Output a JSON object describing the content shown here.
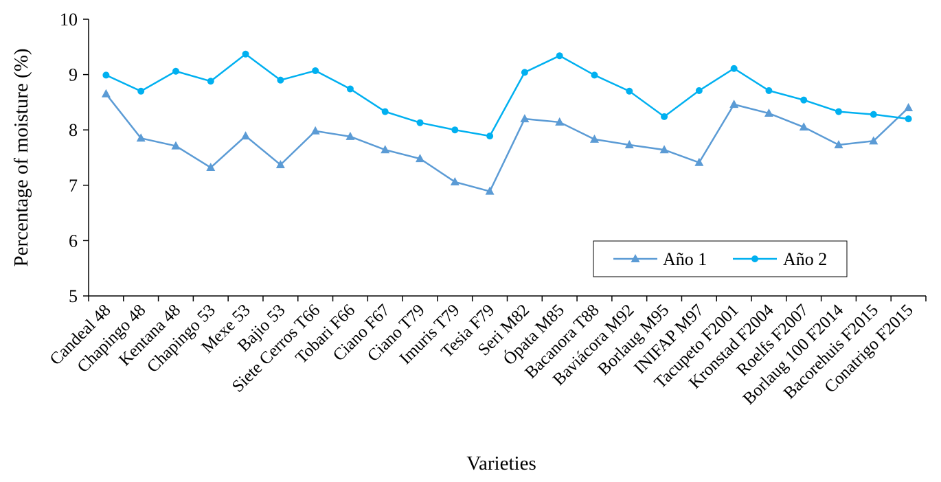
{
  "chart_data": {
    "type": "line",
    "xlabel": "Varieties",
    "ylabel": "Percentage  of moisture (%)",
    "ylim": [
      5,
      10
    ],
    "yticks": [
      5,
      6,
      7,
      8,
      9,
      10
    ],
    "grid": false,
    "legend_position": "bottom-right",
    "categories": [
      "Candeal 48",
      "Chapingo 48",
      "Kentana 48",
      "Chapingo 53",
      "Mexe 53",
      "Bajio 53",
      "Siete Cerros T66",
      "Tobari F66",
      "Ciano F67",
      "Ciano T79",
      "Imuris T79",
      "Tesia F79",
      "Seri M82",
      "Ópata M85",
      "Bacanora T88",
      "Baviácora M92",
      "Borlaug M95",
      "INIFAP M97",
      "Tacupeto F2001",
      "Kronstad F2004",
      "Roelfs F2007",
      "Borlaug 100 F2014",
      "Bacorehuis F2015",
      "Conatrigo F2015"
    ],
    "series": [
      {
        "name": "Año 1",
        "marker": "triangle",
        "color": "#5b9bd5",
        "values": [
          8.65,
          7.85,
          7.71,
          7.32,
          7.89,
          7.37,
          7.98,
          7.88,
          7.64,
          7.48,
          7.06,
          6.89,
          8.2,
          8.14,
          7.83,
          7.73,
          7.64,
          7.41,
          8.46,
          8.3,
          8.05,
          7.73,
          7.8,
          8.4
        ]
      },
      {
        "name": "Año 2",
        "marker": "circle",
        "color": "#00b0f0",
        "values": [
          8.99,
          8.7,
          9.06,
          8.88,
          9.37,
          8.9,
          9.07,
          8.74,
          8.33,
          8.13,
          8.0,
          7.89,
          9.04,
          9.34,
          8.99,
          8.7,
          8.24,
          8.71,
          9.11,
          8.71,
          8.54,
          8.33,
          8.28,
          8.2
        ]
      }
    ]
  }
}
